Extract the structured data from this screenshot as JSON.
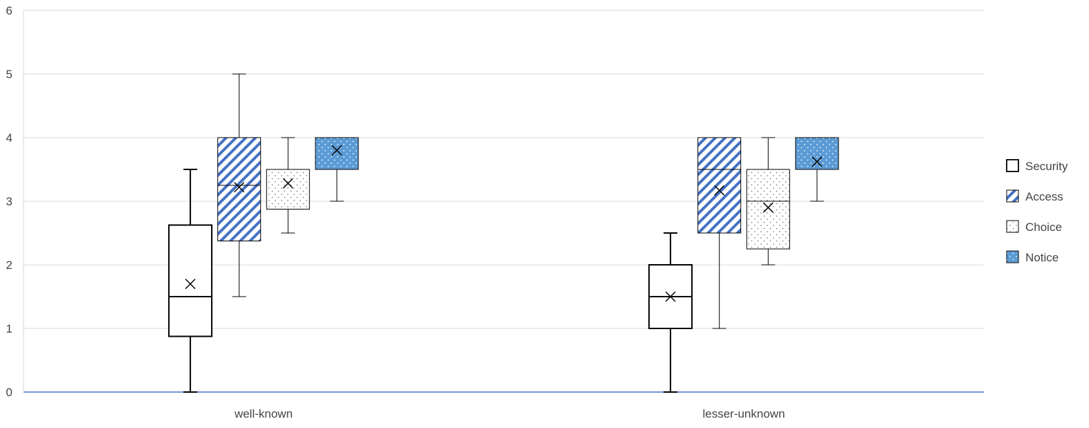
{
  "chart_data": {
    "type": "boxplot",
    "title": "",
    "xlabel": "",
    "ylabel": "",
    "ylim": [
      0,
      6
    ],
    "yticks": [
      "0",
      "1",
      "2",
      "3",
      "4",
      "5",
      "6"
    ],
    "grid": true,
    "legend_position": "right",
    "categories": [
      "well-known",
      "lesser-unknown"
    ],
    "series": [
      {
        "name": "Security",
        "pattern": "none",
        "fill": "#ffffff",
        "stroke": "#000000",
        "boxes": [
          {
            "min": 0,
            "q1": 0.875,
            "median": 1.5,
            "q3": 2.625,
            "max": 3.5,
            "mean": 1.7
          },
          {
            "min": 0,
            "q1": 1.0,
            "median": 1.5,
            "q3": 2.0,
            "max": 2.5,
            "mean": 1.5
          }
        ]
      },
      {
        "name": "Access",
        "pattern": "diagonal-stripes",
        "fill": "#4472c4",
        "stroke": "#000000",
        "boxes": [
          {
            "min": 1.5,
            "q1": 2.375,
            "median": 3.25,
            "q3": 4.0,
            "max": 5.0,
            "mean": 3.22
          },
          {
            "min": 1.0,
            "q1": 2.5,
            "median": 3.5,
            "q3": 4.0,
            "max": 4.0,
            "mean": 3.17
          }
        ]
      },
      {
        "name": "Choice",
        "pattern": "dots",
        "fill": "#ffffff",
        "stroke": "#000000",
        "boxes": [
          {
            "min": 2.5,
            "q1": 2.875,
            "median": 3.5,
            "q3": 3.5,
            "max": 4.0,
            "mean": 3.28
          },
          {
            "min": 2.0,
            "q1": 2.25,
            "median": 3.0,
            "q3": 3.5,
            "max": 4.0,
            "mean": 2.9
          }
        ]
      },
      {
        "name": "Notice",
        "pattern": "dots-on-blue",
        "fill": "#5b9bd5",
        "stroke": "#000000",
        "boxes": [
          {
            "min": 3.0,
            "q1": 3.5,
            "median": 4.0,
            "q3": 4.0,
            "max": 4.0,
            "mean": 3.8
          },
          {
            "min": 3.0,
            "q1": 3.5,
            "median": 4.0,
            "q3": 4.0,
            "max": 4.0,
            "mean": 3.62
          }
        ]
      }
    ],
    "colors": {
      "gridline": "#d9d9d9",
      "axis": "#4472c4",
      "access_stripe": "#4472c4",
      "notice_fill": "#5b9bd5"
    }
  }
}
